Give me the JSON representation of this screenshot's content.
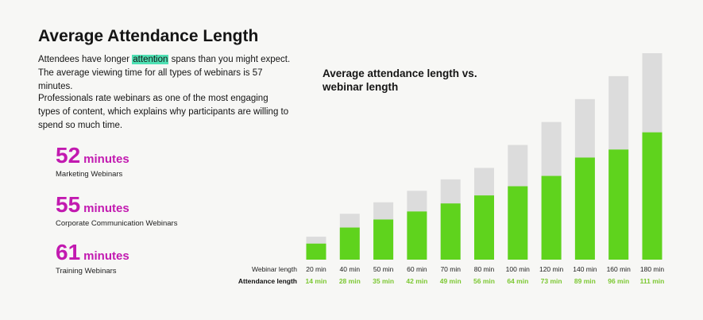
{
  "header": {
    "title": "Average Attendance Length",
    "intro_part1": "Attendees have longer ",
    "intro_highlight": "attention",
    "intro_part2": " spans than you might expect. The average viewing time for all types of webinars is 57 minutes.",
    "intro_para2": "Professionals rate webinars as one of the most engaging types of content, which explains why participants are willing to spend so much time."
  },
  "stats": [
    {
      "value": "52",
      "unit": "minutes",
      "label": "Marketing Webinars"
    },
    {
      "value": "55",
      "unit": "minutes",
      "label": "Corporate Communication Webinars"
    },
    {
      "value": "61",
      "unit": "minutes",
      "label": "Training Webinars"
    }
  ],
  "colors": {
    "attendance": "#5fd31d",
    "webinar": "#dcdcdc",
    "stat_accent": "#c21ab0",
    "attendance_label": "#7cc832",
    "highlight": "#4fe0b3"
  },
  "chart_data": {
    "type": "bar",
    "title": "Average attendance length vs. webinar length",
    "row_labels": {
      "webinar": "Webinar length",
      "attendance": "Attendance length"
    },
    "categories": [
      "20 min",
      "40 min",
      "50 min",
      "60 min",
      "70 min",
      "80 min",
      "100 min",
      "120 min",
      "140 min",
      "160 min",
      "180 min"
    ],
    "attendance_labels": [
      "14 min",
      "28 min",
      "35 min",
      "42 min",
      "49 min",
      "56 min",
      "64 min",
      "73 min",
      "89 min",
      "96 min",
      "111 min"
    ],
    "series": [
      {
        "name": "Webinar length",
        "values": [
          20,
          40,
          50,
          60,
          70,
          80,
          100,
          120,
          140,
          160,
          180
        ]
      },
      {
        "name": "Attendance length",
        "values": [
          14,
          28,
          35,
          42,
          49,
          56,
          64,
          73,
          89,
          96,
          111
        ]
      }
    ],
    "ylim": [
      0,
      180
    ],
    "grid": false,
    "legend": "none"
  }
}
